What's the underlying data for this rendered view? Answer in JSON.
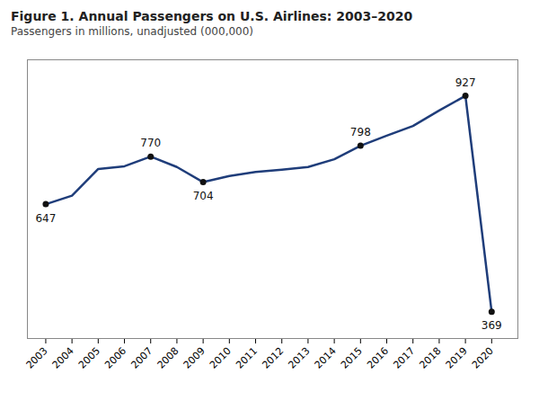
{
  "chart_data": {
    "type": "line",
    "title": "Figure 1. Annual Passengers on U.S. Airlines: 2003–2020",
    "subtitle": "Passengers in millions, unadjusted (000,000)",
    "x": [
      2003,
      2004,
      2005,
      2006,
      2007,
      2008,
      2009,
      2010,
      2011,
      2012,
      2013,
      2014,
      2015,
      2016,
      2017,
      2018,
      2019,
      2020
    ],
    "values": [
      647,
      669,
      738,
      745,
      770,
      743,
      704,
      720,
      730,
      736,
      743,
      763,
      798,
      824,
      849,
      889,
      927,
      369
    ],
    "color": "#1f3d7a",
    "xlim": [
      2002.3,
      2021.0
    ],
    "xticks": [
      2003,
      2004,
      2005,
      2006,
      2007,
      2008,
      2009,
      2010,
      2011,
      2012,
      2013,
      2014,
      2015,
      2016,
      2017,
      2018,
      2019,
      2020
    ],
    "ylim": [
      300,
      1020
    ],
    "tick_labels": "x",
    "grid": false,
    "marker": "circle",
    "annotations": [
      {
        "x": 2003,
        "y": 647,
        "label": "647",
        "color": "#111111"
      },
      {
        "x": 2007,
        "y": 770,
        "label": "770",
        "color": "#111111"
      },
      {
        "x": 2009,
        "y": 704,
        "label": "704",
        "color": "#111111"
      },
      {
        "x": 2015,
        "y": 798,
        "label": "798",
        "color": "#111111"
      },
      {
        "x": 2019,
        "y": 927,
        "label": "927",
        "color": "#111111"
      },
      {
        "x": 2020,
        "y": 369,
        "label": "369",
        "color": "#111111"
      }
    ]
  }
}
